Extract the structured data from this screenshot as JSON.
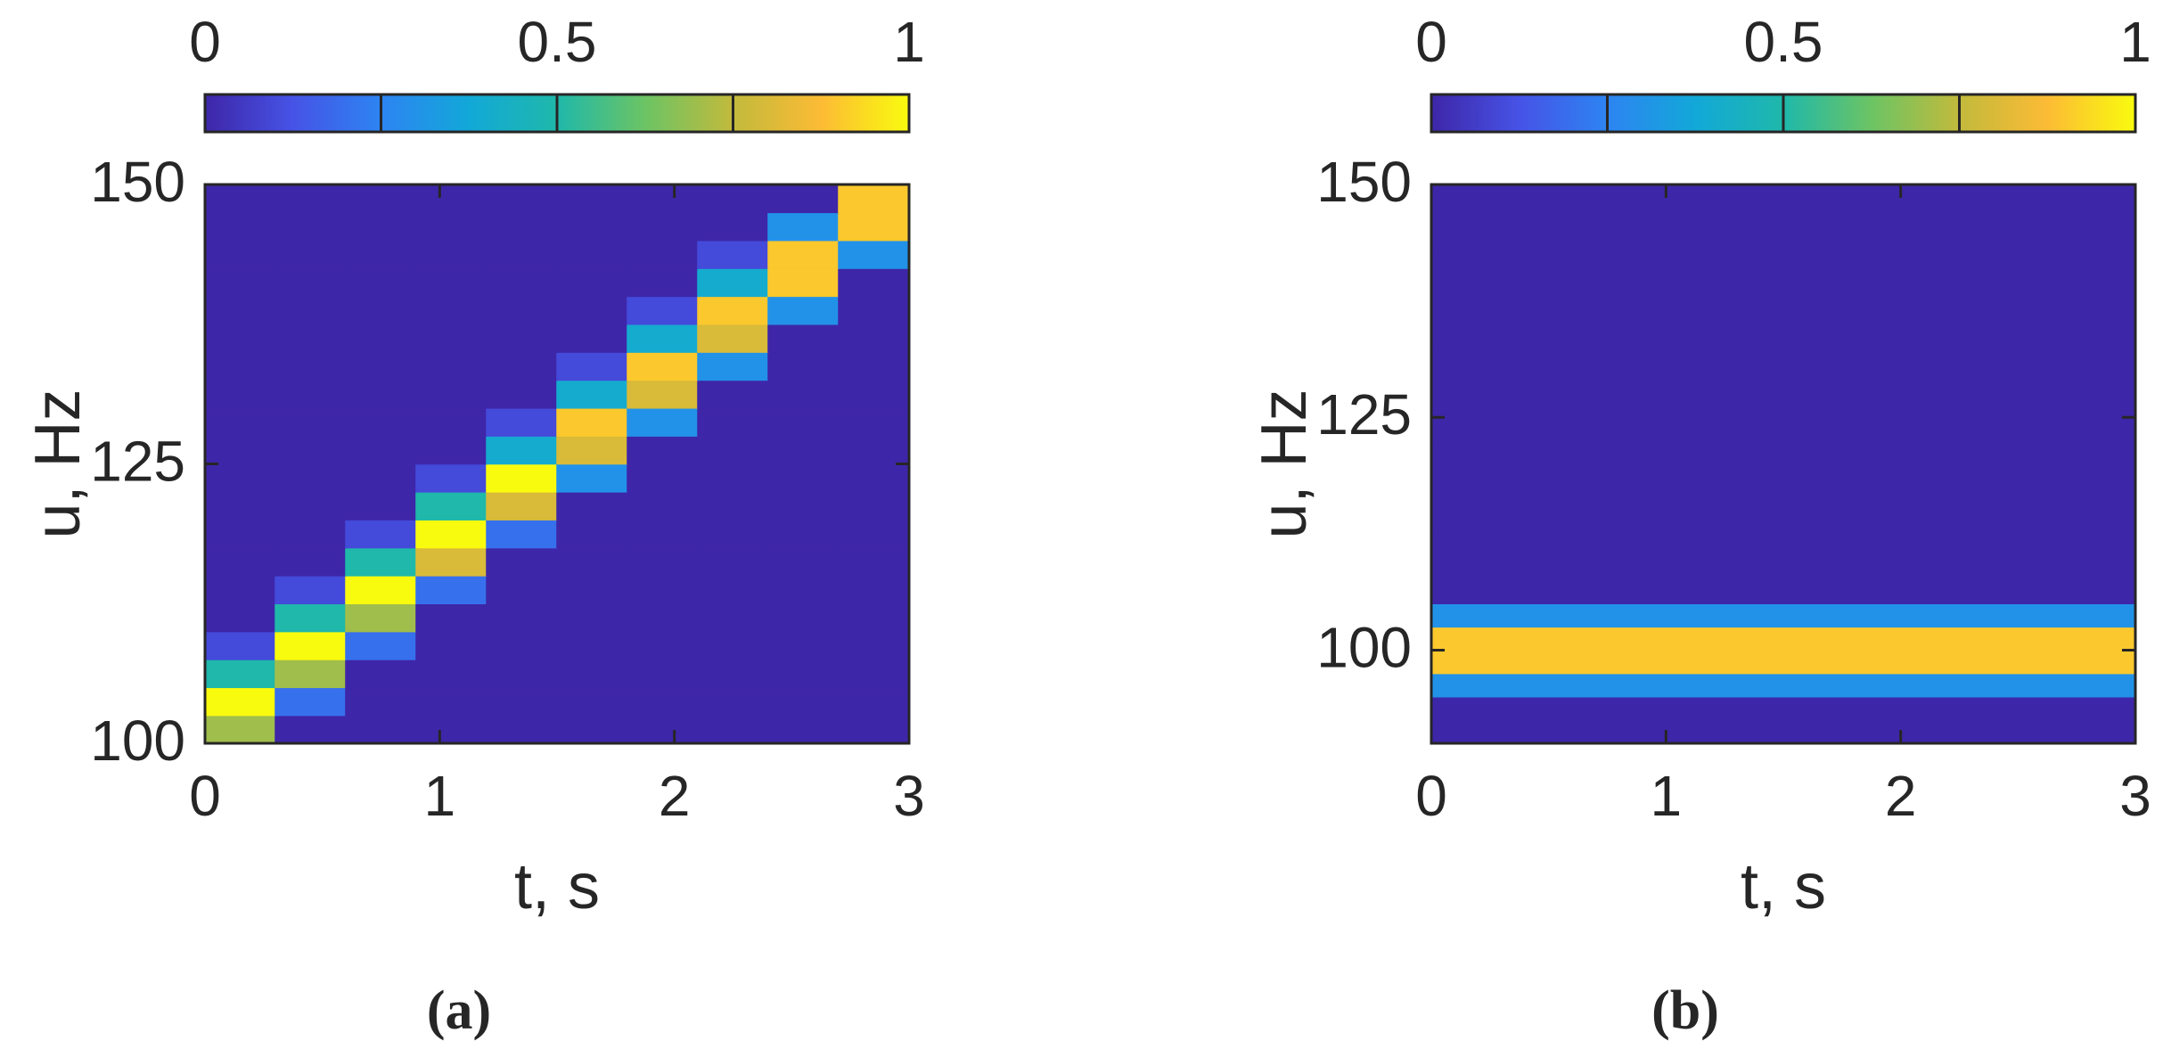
{
  "chart_data": [
    {
      "type": "heatmap",
      "caption": "(a)",
      "xlabel": "t, s",
      "ylabel": "u, Hz",
      "xlim": [
        0,
        3
      ],
      "ylim": [
        100,
        150
      ],
      "xticks": [
        0,
        1,
        2,
        3
      ],
      "yticks": [
        100,
        125,
        150
      ],
      "x": [
        0.15,
        0.45,
        0.75,
        1.05,
        1.35,
        1.65,
        1.95,
        2.25,
        2.55,
        2.85
      ],
      "y": [
        101.25,
        103.75,
        106.25,
        108.75,
        111.25,
        113.75,
        116.25,
        118.75,
        121.25,
        123.75,
        126.25,
        128.75,
        131.25,
        133.75,
        136.25,
        138.75,
        141.25,
        143.75,
        146.25,
        148.75
      ],
      "z": [
        [
          0.7,
          0,
          0,
          0,
          0,
          0,
          0,
          0,
          0,
          0
        ],
        [
          1,
          0.2,
          0,
          0,
          0,
          0,
          0,
          0,
          0,
          0
        ],
        [
          0.5,
          0.7,
          0,
          0,
          0,
          0,
          0,
          0,
          0,
          0
        ],
        [
          0.1,
          1,
          0.2,
          0,
          0,
          0,
          0,
          0,
          0,
          0
        ],
        [
          0,
          0.5,
          0.7,
          0,
          0,
          0,
          0,
          0,
          0,
          0
        ],
        [
          0,
          0.1,
          1,
          0.2,
          0,
          0,
          0,
          0,
          0,
          0
        ],
        [
          0,
          0,
          0.5,
          0.8,
          0,
          0,
          0,
          0,
          0,
          0
        ],
        [
          0,
          0,
          0.1,
          1,
          0.2,
          0,
          0,
          0,
          0,
          0
        ],
        [
          0,
          0,
          0,
          0.5,
          0.8,
          0,
          0,
          0,
          0,
          0
        ],
        [
          0,
          0,
          0,
          0.1,
          1,
          0.3,
          0,
          0,
          0,
          0
        ],
        [
          0,
          0,
          0,
          0,
          0.4,
          0.8,
          0,
          0,
          0,
          0
        ],
        [
          0,
          0,
          0,
          0,
          0.1,
          0.9,
          0.3,
          0,
          0,
          0
        ],
        [
          0,
          0,
          0,
          0,
          0,
          0.4,
          0.8,
          0,
          0,
          0
        ],
        [
          0,
          0,
          0,
          0,
          0,
          0.1,
          0.9,
          0.3,
          0,
          0
        ],
        [
          0,
          0,
          0,
          0,
          0,
          0,
          0.4,
          0.8,
          0,
          0
        ],
        [
          0,
          0,
          0,
          0,
          0,
          0,
          0.1,
          0.9,
          0.3,
          0
        ],
        [
          0,
          0,
          0,
          0,
          0,
          0,
          0,
          0.4,
          0.9,
          0
        ],
        [
          0,
          0,
          0,
          0,
          0,
          0,
          0,
          0.1,
          0.9,
          0.3
        ],
        [
          0,
          0,
          0,
          0,
          0,
          0,
          0,
          0,
          0.3,
          0.9
        ],
        [
          0,
          0,
          0,
          0,
          0,
          0,
          0,
          0,
          0,
          0.9
        ]
      ],
      "clim": [
        0,
        1
      ],
      "cticks": [
        0,
        0.5,
        1
      ],
      "cticks_minor": [
        0.25,
        0.75
      ],
      "colormap": [
        "#3e26a8",
        "#4653e6",
        "#2d84f2",
        "#12a8d8",
        "#1fb8aa",
        "#6cc464",
        "#c2ba3c",
        "#fcbb35",
        "#f9fb0e"
      ]
    },
    {
      "type": "heatmap",
      "caption": "(b)",
      "xlabel": "t, s",
      "ylabel": "u, Hz",
      "xlim": [
        0,
        3
      ],
      "ylim": [
        90,
        150
      ],
      "xticks": [
        0,
        1,
        2,
        3
      ],
      "yticks": [
        100,
        125,
        150
      ],
      "x": [
        1.5
      ],
      "y": [
        91.25,
        93.75,
        96.25,
        98.75,
        101.25,
        103.75,
        106.25,
        108.75,
        111.25,
        113.75,
        116.25,
        118.75,
        121.25,
        123.75,
        126.25,
        128.75,
        131.25,
        133.75,
        136.25,
        138.75,
        141.25,
        143.75,
        146.25,
        148.75
      ],
      "z": [
        [
          0
        ],
        [
          0
        ],
        [
          0.3
        ],
        [
          0.9
        ],
        [
          0.9
        ],
        [
          0.3
        ],
        [
          0
        ],
        [
          0
        ],
        [
          0
        ],
        [
          0
        ],
        [
          0
        ],
        [
          0
        ],
        [
          0
        ],
        [
          0
        ],
        [
          0
        ],
        [
          0
        ],
        [
          0
        ],
        [
          0
        ],
        [
          0
        ],
        [
          0
        ],
        [
          0
        ],
        [
          0
        ],
        [
          0
        ],
        [
          0
        ]
      ],
      "clim": [
        0,
        1
      ],
      "cticks": [
        0,
        0.5,
        1
      ],
      "cticks_minor": [
        0.25,
        0.75
      ],
      "colormap": [
        "#3e26a8",
        "#4653e6",
        "#2d84f2",
        "#12a8d8",
        "#1fb8aa",
        "#6cc464",
        "#c2ba3c",
        "#fcbb35",
        "#f9fb0e"
      ]
    }
  ]
}
